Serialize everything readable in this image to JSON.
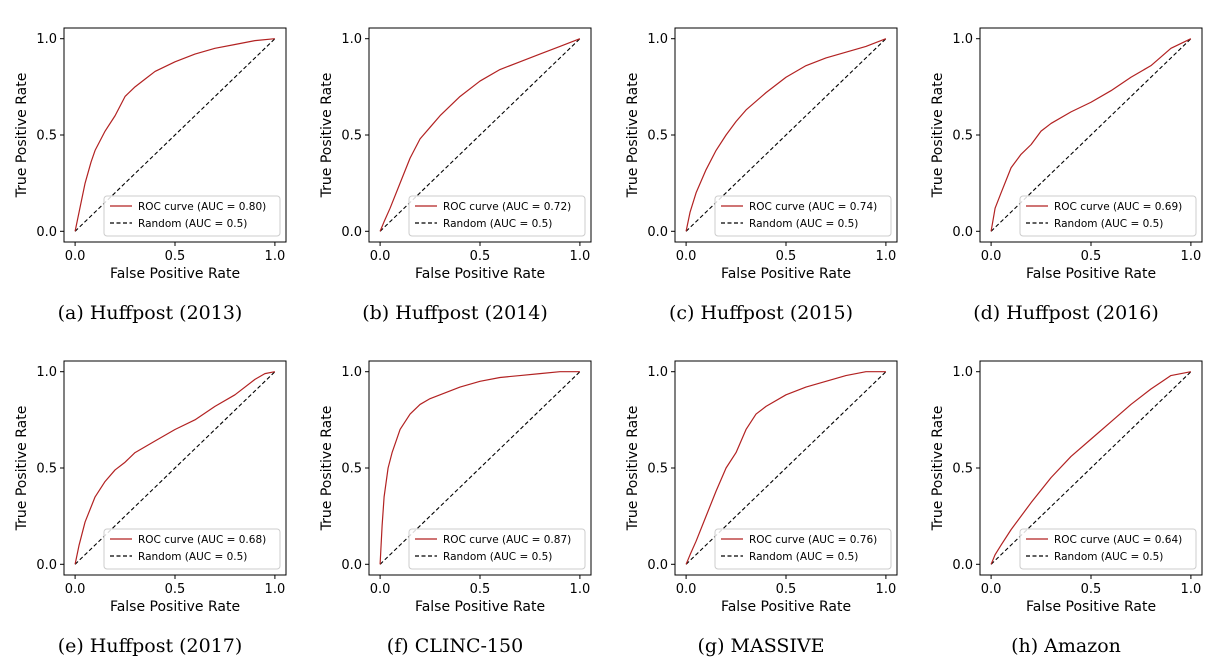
{
  "chart_data": [
    {
      "type": "line",
      "caption": "(a) Huffpost (2013)",
      "xlabel": "False Positive Rate",
      "ylabel": "True Positive Rate",
      "xlim": [
        0,
        1
      ],
      "ylim": [
        0,
        1
      ],
      "xticks": [
        "0.0",
        "0.5",
        "1.0"
      ],
      "yticks": [
        "0.0",
        "0.5",
        "1.0"
      ],
      "legend_position": "lower-right",
      "series": [
        {
          "name": "ROC curve (AUC = 0.80)",
          "color": "#b22222",
          "style": "solid",
          "x": [
            0,
            0.02,
            0.05,
            0.08,
            0.1,
            0.15,
            0.2,
            0.25,
            0.3,
            0.35,
            0.4,
            0.5,
            0.6,
            0.7,
            0.8,
            0.9,
            1.0
          ],
          "y": [
            0,
            0.1,
            0.25,
            0.36,
            0.42,
            0.52,
            0.6,
            0.7,
            0.75,
            0.79,
            0.83,
            0.88,
            0.92,
            0.95,
            0.97,
            0.99,
            1.0
          ]
        },
        {
          "name": "Random (AUC = 0.5)",
          "color": "#000000",
          "style": "dashed",
          "x": [
            0,
            1
          ],
          "y": [
            0,
            1
          ]
        }
      ]
    },
    {
      "type": "line",
      "caption": "(b) Huffpost (2014)",
      "xlabel": "False Positive Rate",
      "ylabel": "True Positive Rate",
      "xlim": [
        0,
        1
      ],
      "ylim": [
        0,
        1
      ],
      "xticks": [
        "0.0",
        "0.5",
        "1.0"
      ],
      "yticks": [
        "0.0",
        "0.5",
        "1.0"
      ],
      "legend_position": "lower-right",
      "series": [
        {
          "name": "ROC curve (AUC = 0.72)",
          "color": "#b22222",
          "style": "solid",
          "x": [
            0,
            0.02,
            0.05,
            0.1,
            0.15,
            0.2,
            0.25,
            0.3,
            0.4,
            0.5,
            0.6,
            0.7,
            0.8,
            0.9,
            1.0
          ],
          "y": [
            0,
            0.05,
            0.12,
            0.25,
            0.38,
            0.48,
            0.54,
            0.6,
            0.7,
            0.78,
            0.84,
            0.88,
            0.92,
            0.96,
            1.0
          ]
        },
        {
          "name": "Random (AUC = 0.5)",
          "color": "#000000",
          "style": "dashed",
          "x": [
            0,
            1
          ],
          "y": [
            0,
            1
          ]
        }
      ]
    },
    {
      "type": "line",
      "caption": "(c) Huffpost (2015)",
      "xlabel": "False Positive Rate",
      "ylabel": "True Positive Rate",
      "xlim": [
        0,
        1
      ],
      "ylim": [
        0,
        1
      ],
      "xticks": [
        "0.0",
        "0.5",
        "1.0"
      ],
      "yticks": [
        "0.0",
        "0.5",
        "1.0"
      ],
      "legend_position": "lower-right",
      "series": [
        {
          "name": "ROC curve (AUC = 0.74)",
          "color": "#b22222",
          "style": "solid",
          "x": [
            0,
            0.02,
            0.05,
            0.1,
            0.15,
            0.2,
            0.25,
            0.3,
            0.4,
            0.5,
            0.6,
            0.7,
            0.8,
            0.9,
            1.0
          ],
          "y": [
            0,
            0.1,
            0.2,
            0.32,
            0.42,
            0.5,
            0.57,
            0.63,
            0.72,
            0.8,
            0.86,
            0.9,
            0.93,
            0.96,
            1.0
          ]
        },
        {
          "name": "Random (AUC = 0.5)",
          "color": "#000000",
          "style": "dashed",
          "x": [
            0,
            1
          ],
          "y": [
            0,
            1
          ]
        }
      ]
    },
    {
      "type": "line",
      "caption": "(d) Huffpost (2016)",
      "xlabel": "False Positive Rate",
      "ylabel": "True Positive Rate",
      "xlim": [
        0,
        1
      ],
      "ylim": [
        0,
        1
      ],
      "xticks": [
        "0.0",
        "0.5",
        "1.0"
      ],
      "yticks": [
        "0.0",
        "0.5",
        "1.0"
      ],
      "legend_position": "lower-right",
      "series": [
        {
          "name": "ROC curve (AUC = 0.69)",
          "color": "#b22222",
          "style": "solid",
          "x": [
            0,
            0.02,
            0.05,
            0.1,
            0.15,
            0.2,
            0.25,
            0.3,
            0.4,
            0.5,
            0.6,
            0.7,
            0.8,
            0.9,
            1.0
          ],
          "y": [
            0,
            0.12,
            0.2,
            0.33,
            0.4,
            0.45,
            0.52,
            0.56,
            0.62,
            0.67,
            0.73,
            0.8,
            0.86,
            0.95,
            1.0
          ]
        },
        {
          "name": "Random (AUC = 0.5)",
          "color": "#000000",
          "style": "dashed",
          "x": [
            0,
            1
          ],
          "y": [
            0,
            1
          ]
        }
      ]
    },
    {
      "type": "line",
      "caption": "(e) Huffpost (2017)",
      "xlabel": "False Positive Rate",
      "ylabel": "True Positive Rate",
      "xlim": [
        0,
        1
      ],
      "ylim": [
        0,
        1
      ],
      "xticks": [
        "0.0",
        "0.5",
        "1.0"
      ],
      "yticks": [
        "0.0",
        "0.5",
        "1.0"
      ],
      "legend_position": "lower-right",
      "series": [
        {
          "name": "ROC curve (AUC = 0.68)",
          "color": "#b22222",
          "style": "solid",
          "x": [
            0,
            0.02,
            0.05,
            0.1,
            0.15,
            0.2,
            0.25,
            0.3,
            0.4,
            0.5,
            0.6,
            0.7,
            0.8,
            0.9,
            0.95,
            1.0
          ],
          "y": [
            0,
            0.1,
            0.22,
            0.35,
            0.43,
            0.49,
            0.53,
            0.58,
            0.64,
            0.7,
            0.75,
            0.82,
            0.88,
            0.96,
            0.99,
            1.0
          ]
        },
        {
          "name": "Random (AUC = 0.5)",
          "color": "#000000",
          "style": "dashed",
          "x": [
            0,
            1
          ],
          "y": [
            0,
            1
          ]
        }
      ]
    },
    {
      "type": "line",
      "caption": "(f) CLINC-150",
      "xlabel": "False Positive Rate",
      "ylabel": "True Positive Rate",
      "xlim": [
        0,
        1
      ],
      "ylim": [
        0,
        1
      ],
      "xticks": [
        "0.0",
        "0.5",
        "1.0"
      ],
      "yticks": [
        "0.0",
        "0.5",
        "1.0"
      ],
      "legend_position": "lower-right",
      "series": [
        {
          "name": "ROC curve (AUC = 0.87)",
          "color": "#b22222",
          "style": "solid",
          "x": [
            0,
            0.01,
            0.02,
            0.04,
            0.06,
            0.08,
            0.1,
            0.15,
            0.2,
            0.25,
            0.3,
            0.4,
            0.5,
            0.6,
            0.7,
            0.8,
            0.9,
            1.0
          ],
          "y": [
            0,
            0.2,
            0.35,
            0.5,
            0.58,
            0.64,
            0.7,
            0.78,
            0.83,
            0.86,
            0.88,
            0.92,
            0.95,
            0.97,
            0.98,
            0.99,
            1.0,
            1.0
          ]
        },
        {
          "name": "Random (AUC = 0.5)",
          "color": "#000000",
          "style": "dashed",
          "x": [
            0,
            1
          ],
          "y": [
            0,
            1
          ]
        }
      ]
    },
    {
      "type": "line",
      "caption": "(g) MASSIVE",
      "xlabel": "False Positive Rate",
      "ylabel": "True Positive Rate",
      "xlim": [
        0,
        1
      ],
      "ylim": [
        0,
        1
      ],
      "xticks": [
        "0.0",
        "0.5",
        "1.0"
      ],
      "yticks": [
        "0.0",
        "0.5",
        "1.0"
      ],
      "legend_position": "lower-right",
      "series": [
        {
          "name": "ROC curve (AUC = 0.76)",
          "color": "#b22222",
          "style": "solid",
          "x": [
            0,
            0.02,
            0.05,
            0.1,
            0.15,
            0.2,
            0.25,
            0.3,
            0.35,
            0.4,
            0.5,
            0.6,
            0.7,
            0.8,
            0.9,
            1.0
          ],
          "y": [
            0,
            0.05,
            0.12,
            0.25,
            0.38,
            0.5,
            0.58,
            0.7,
            0.78,
            0.82,
            0.88,
            0.92,
            0.95,
            0.98,
            1.0,
            1.0
          ]
        },
        {
          "name": "Random (AUC = 0.5)",
          "color": "#000000",
          "style": "dashed",
          "x": [
            0,
            1
          ],
          "y": [
            0,
            1
          ]
        }
      ]
    },
    {
      "type": "line",
      "caption": "(h) Amazon",
      "xlabel": "False Positive Rate",
      "ylabel": "True Positive Rate",
      "xlim": [
        0,
        1
      ],
      "ylim": [
        0,
        1
      ],
      "xticks": [
        "0.0",
        "0.5",
        "1.0"
      ],
      "yticks": [
        "0.0",
        "0.5",
        "1.0"
      ],
      "legend_position": "lower-right",
      "series": [
        {
          "name": "ROC curve (AUC = 0.64)",
          "color": "#b22222",
          "style": "solid",
          "x": [
            0,
            0.02,
            0.05,
            0.1,
            0.2,
            0.3,
            0.4,
            0.5,
            0.6,
            0.7,
            0.8,
            0.9,
            1.0
          ],
          "y": [
            0,
            0.05,
            0.1,
            0.18,
            0.32,
            0.45,
            0.56,
            0.65,
            0.74,
            0.83,
            0.91,
            0.98,
            1.0
          ]
        },
        {
          "name": "Random (AUC = 0.5)",
          "color": "#000000",
          "style": "dashed",
          "x": [
            0,
            1
          ],
          "y": [
            0,
            1
          ]
        }
      ]
    }
  ]
}
